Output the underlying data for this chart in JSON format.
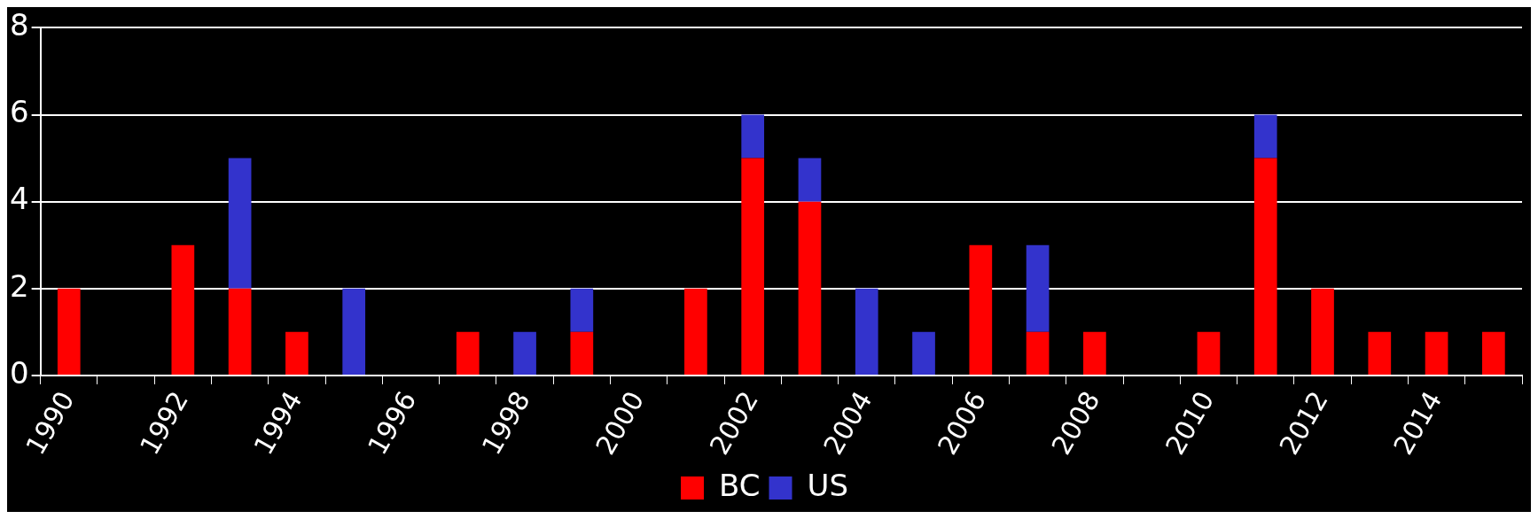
{
  "chart_data": {
    "type": "bar",
    "stacked": true,
    "categories": [
      "1990",
      null,
      "1992",
      null,
      "1994",
      null,
      "1996",
      null,
      "1998",
      null,
      "2000",
      null,
      "2002",
      null,
      "2004",
      null,
      "2006",
      null,
      "2008",
      null,
      "2010",
      null,
      "2012",
      null,
      "2014",
      null
    ],
    "series": [
      {
        "name": "BC",
        "color": "#ff0000",
        "values": [
          2,
          0,
          3,
          2,
          1,
          0,
          0,
          1,
          0,
          1,
          0,
          2,
          5,
          4,
          0,
          0,
          3,
          1,
          1,
          0,
          1,
          5,
          2,
          1,
          1,
          1
        ]
      },
      {
        "name": "US",
        "color": "#3333cc",
        "values": [
          0,
          0,
          0,
          3,
          0,
          2,
          0,
          0,
          1,
          1,
          0,
          0,
          1,
          1,
          2,
          1,
          0,
          2,
          0,
          0,
          0,
          1,
          0,
          0,
          0,
          0
        ]
      }
    ],
    "ylim": [
      0,
      8
    ],
    "yticks": [
      0,
      2,
      4,
      6,
      8
    ],
    "grid": "y",
    "legend": "bottom"
  }
}
